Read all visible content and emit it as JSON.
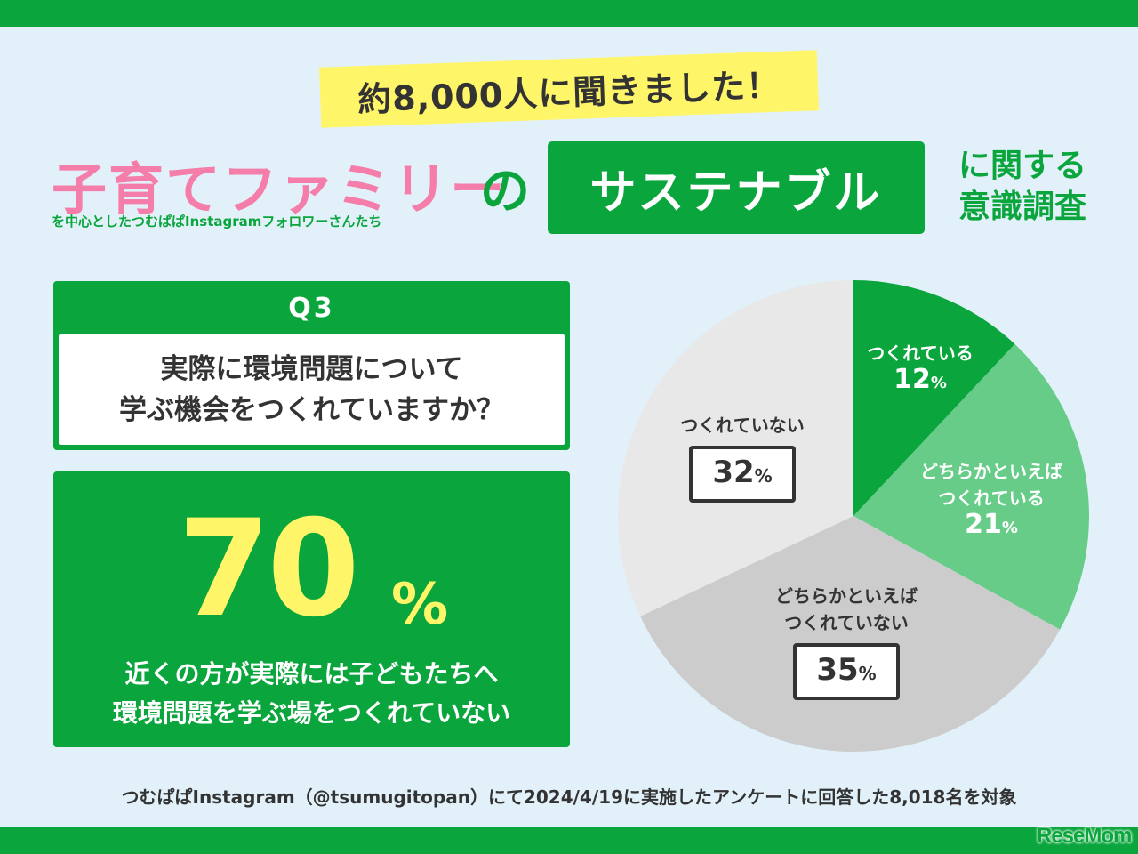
{
  "banner": "約8,000人に聞きました！",
  "title": {
    "main": "子育てファミリー",
    "sub": "を中心としたつむぱぱInstagramフォロワーさんたち",
    "connector": "の",
    "highlight": "サステナブル",
    "suffix_line1": "に関する",
    "suffix_line2": "意識調査"
  },
  "question": {
    "label": "Q3",
    "line1": "実際に環境問題について",
    "line2": "学ぶ機会をつくれていますか？"
  },
  "result": {
    "number": "70",
    "unit": "%",
    "line1": "近くの方が実際には子どもたちへ",
    "line2": "環境問題を学ぶ場をつくれていない"
  },
  "chart_data": {
    "type": "pie",
    "slices": [
      {
        "label": "つくれている",
        "value": 12,
        "color": "#0aa53c"
      },
      {
        "label": "どちらかといえば\nつくれている",
        "value": 21,
        "color": "#66cc88"
      },
      {
        "label": "どちらかといえば\nつくれていない",
        "value": 35,
        "color": "#cccccc"
      },
      {
        "label": "つくれていない",
        "value": 32,
        "color": "#e8e8e8"
      }
    ],
    "unit": "%",
    "start_angle": "top",
    "direction": "clockwise"
  },
  "pie_labels": {
    "s1_text": "つくれている",
    "s1_value": "12",
    "s2_line1": "どちらかといえば",
    "s2_line2": "つくれている",
    "s2_value": "21",
    "s3_line1": "どちらかといえば",
    "s3_line2": "つくれていない",
    "s3_value": "35",
    "s4_text": "つくれていない",
    "s4_value": "32",
    "unit": "%"
  },
  "footnote": "つむぱぱInstagram（@tsumugitopan）にて2024/4/19に実施したアンケートに回答した8,018名を対象",
  "logo": "ReseMom"
}
